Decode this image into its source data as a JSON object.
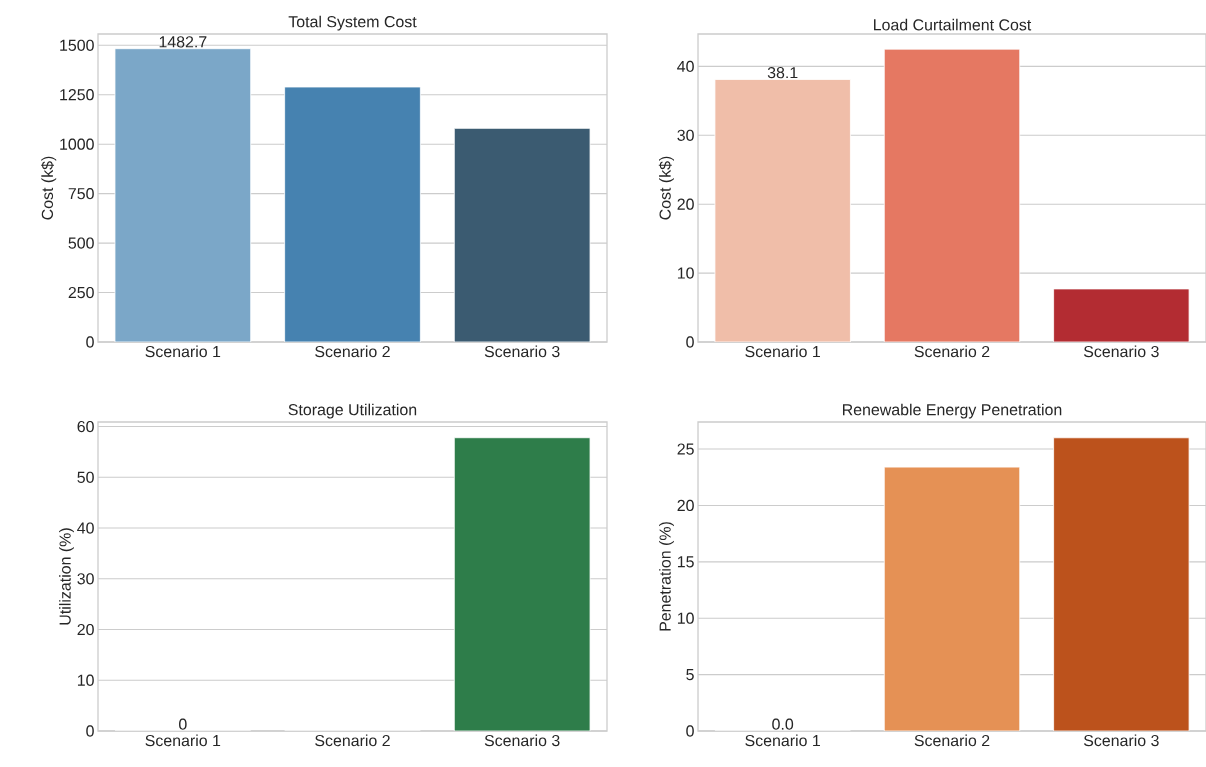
{
  "chart_data": [
    {
      "type": "bar",
      "title": "Total System Cost",
      "ylabel": "Cost (k$)",
      "categories": [
        "Scenario 1",
        "Scenario 2",
        "Scenario 3"
      ],
      "values": [
        1482.7,
        1289,
        1080
      ],
      "colors": [
        "#7ba7c8",
        "#4682b0",
        "#3b5b71"
      ],
      "value_labels": [
        "1482.7",
        null,
        null
      ],
      "ylim": [
        0,
        1557
      ],
      "yticks": [
        0,
        250,
        500,
        750,
        1000,
        1250,
        1500
      ],
      "grid": "y"
    },
    {
      "type": "bar",
      "title": "Load Curtailment Cost",
      "ylabel": "Cost (k$)",
      "categories": [
        "Scenario 1",
        "Scenario 2",
        "Scenario 3"
      ],
      "values": [
        38.1,
        42.5,
        7.7
      ],
      "colors": [
        "#f0bea9",
        "#e57862",
        "#b32c32"
      ],
      "value_labels": [
        "38.1",
        null,
        null
      ],
      "ylim": [
        0,
        44.7
      ],
      "yticks": [
        0,
        10,
        20,
        30,
        40
      ],
      "grid": "y"
    },
    {
      "type": "bar",
      "title": "Storage Utilization",
      "ylabel": "Utilization (%)",
      "categories": [
        "Scenario 1",
        "Scenario 2",
        "Scenario 3"
      ],
      "values": [
        0,
        0,
        57.8
      ],
      "colors": [
        "#9fd4a0",
        "#5fb46e",
        "#2e7d4a"
      ],
      "value_labels": [
        "0",
        null,
        null
      ],
      "ylim": [
        0,
        60.9
      ],
      "yticks": [
        0,
        10,
        20,
        30,
        40,
        50,
        60
      ],
      "grid": "y"
    },
    {
      "type": "bar",
      "title": "Renewable Energy Penetration",
      "ylabel": "Penetration (%)",
      "categories": [
        "Scenario 1",
        "Scenario 2",
        "Scenario 3"
      ],
      "values": [
        0.0,
        23.4,
        26.0
      ],
      "colors": [
        "#fdd0a2",
        "#e59155",
        "#bc521c"
      ],
      "value_labels": [
        "0.0",
        null,
        null
      ],
      "ylim": [
        0,
        27.4
      ],
      "yticks": [
        0,
        5,
        10,
        15,
        20,
        25
      ],
      "grid": "y"
    }
  ]
}
